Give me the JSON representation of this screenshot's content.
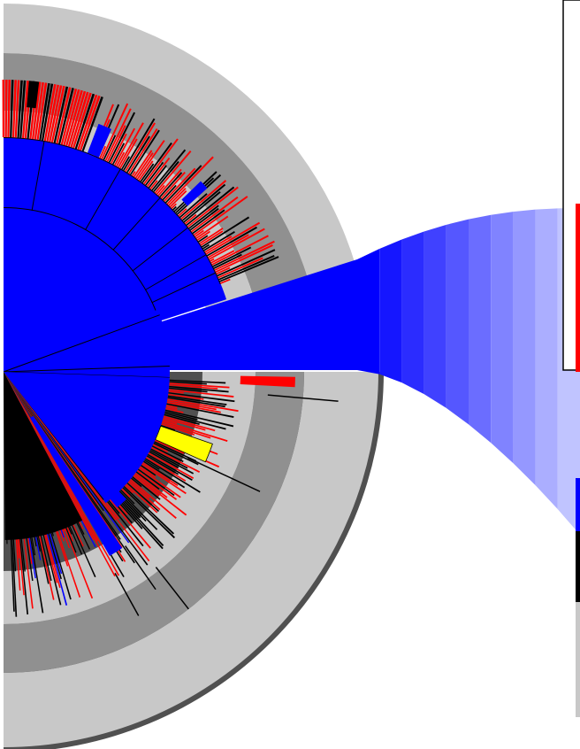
{
  "diagram": {
    "kind": "radial-hierarchy-with-focus-funnel",
    "colors": {
      "background": "#ffffff",
      "focus": "#0000ff",
      "leaf": "#ff0000",
      "dense": "#000000",
      "highlight": "#ffff00",
      "ring_light": "#c8c8c8",
      "ring_dark": "#909090",
      "shadow": "#505050",
      "funnel_end": "#c0c4ff",
      "border": "#000000"
    },
    "funnel_steps": 10,
    "side_strip_marks": [
      "red",
      "black",
      "red",
      "black",
      "red"
    ]
  }
}
